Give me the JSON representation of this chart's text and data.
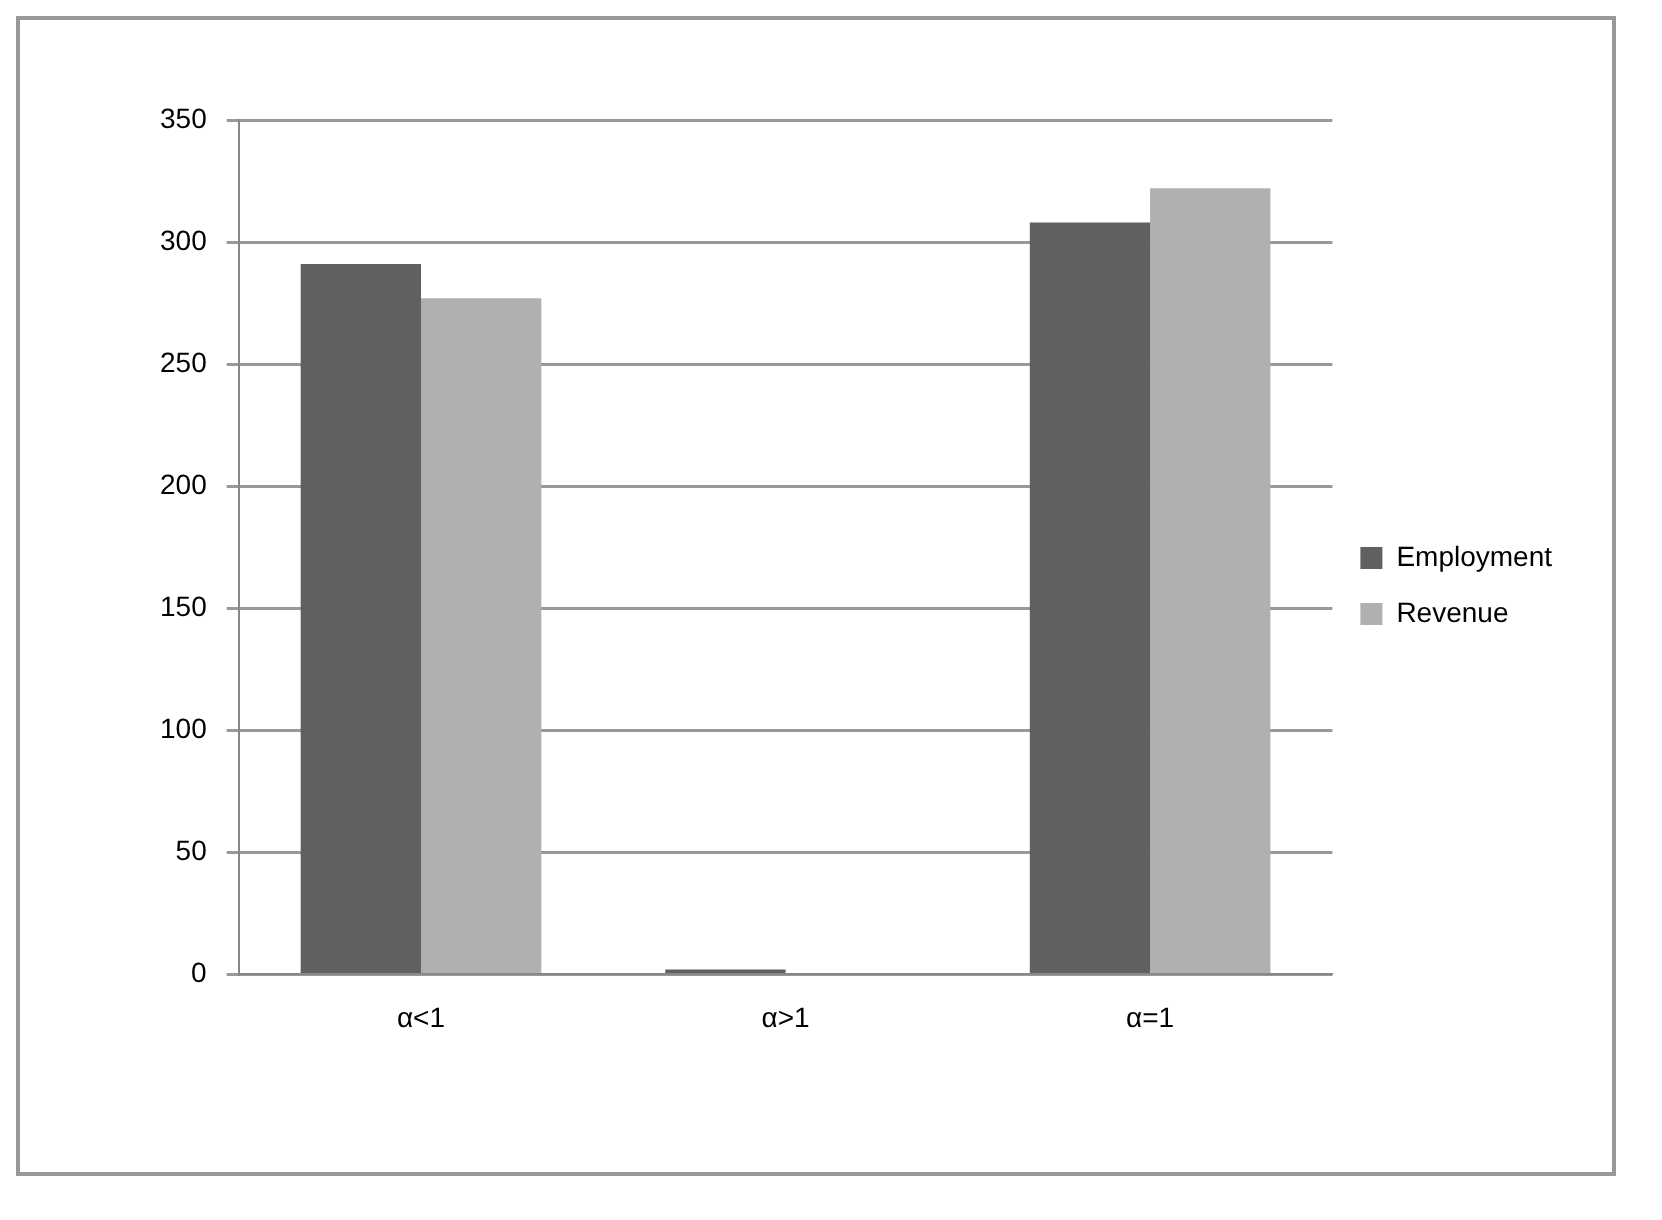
{
  "chart_data": {
    "type": "bar",
    "categories": [
      "α<1",
      "α>1",
      "α=1"
    ],
    "series": [
      {
        "name": "Employment",
        "color": "#606060",
        "values": [
          291,
          2,
          308
        ]
      },
      {
        "name": "Revenue",
        "color": "#b0b0b0",
        "values": [
          277,
          0,
          322
        ]
      }
    ],
    "ylim": [
      0,
      350
    ],
    "yticks": [
      0,
      50,
      100,
      150,
      200,
      250,
      300,
      350
    ],
    "grid": "y",
    "legend": "right"
  }
}
